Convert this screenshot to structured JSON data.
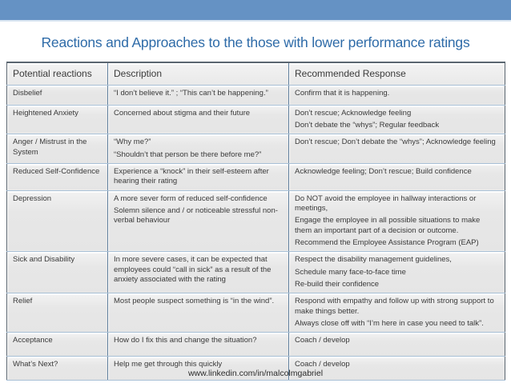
{
  "slide": {
    "title": "Reactions and Approaches to the those with lower performance ratings",
    "footer_url": "www.linkedin.com/in/malcolmgabriel"
  },
  "colors": {
    "top_bar": "#6592C4",
    "top_bar_edge": "#D9E5F1",
    "title_text": "#2E6BA8",
    "cell_text": "#3A3A3A",
    "border_outer": "#5B6670",
    "border_vertical": "#5F7E9C",
    "border_horizontal": "#A8C0D6",
    "footer_text": "#2B2B2B"
  },
  "table": {
    "headers": [
      "Potential reactions",
      "Description",
      "Recommended Response"
    ],
    "rows": [
      {
        "reaction": "Disbelief",
        "description": [
          "“I don’t believe it.” ; “This can’t be happening.”"
        ],
        "response": [
          "Confirm that it is happening."
        ]
      },
      {
        "reaction": "Heightened Anxiety",
        "description": [
          "Concerned about stigma and their future"
        ],
        "response": [
          "Don’t rescue; Acknowledge feeling",
          "Don’t debate the “whys”; Regular feedback"
        ]
      },
      {
        "reaction": "Anger / Mistrust in the System",
        "description": [
          "“Why me?”",
          "“Shouldn’t that person be there before me?”"
        ],
        "response": [
          "Don’t rescue; Don’t debate the “whys”; Acknowledge feeling"
        ]
      },
      {
        "reaction": "Reduced Self-Confidence",
        "description": [
          "Experience a “knock” in their self-esteem after hearing their rating"
        ],
        "response": [
          "Acknowledge feeling; Don’t rescue; Build confidence"
        ]
      },
      {
        "reaction": "Depression",
        "description": [
          "A more sever form of reduced self-confidence",
          "Solemn silence and / or noticeable stressful non-verbal behaviour"
        ],
        "response": [
          "Do NOT avoid the employee in hallway interactions or meetings,",
          "Engage the employee in all possible situations to make them an important part of a decision or outcome.",
          "Recommend the Employee Assistance Program (EAP)"
        ]
      },
      {
        "reaction": "Sick and Disability",
        "description": [
          "In more severe cases, it can be expected that employees could “call in sick” as a result of the anxiety associated with the rating"
        ],
        "response": [
          "Respect the disability management guidelines,",
          "Schedule many face-to-face time",
          "Re-build their confidence"
        ]
      },
      {
        "reaction": "Relief",
        "description": [
          "Most people suspect something is “in the wind”."
        ],
        "response": [
          "Respond with empathy and follow up with strong support to make things better.",
          "Always close off with “I’m here in case you need to talk”."
        ]
      },
      {
        "reaction": "Acceptance",
        "description": [
          "How do I fix this and change the situation?"
        ],
        "response": [
          "Coach / develop"
        ]
      },
      {
        "reaction": "What’s Next?",
        "description": [
          "Help me get through this quickly"
        ],
        "response": [
          "Coach / develop"
        ]
      }
    ]
  }
}
